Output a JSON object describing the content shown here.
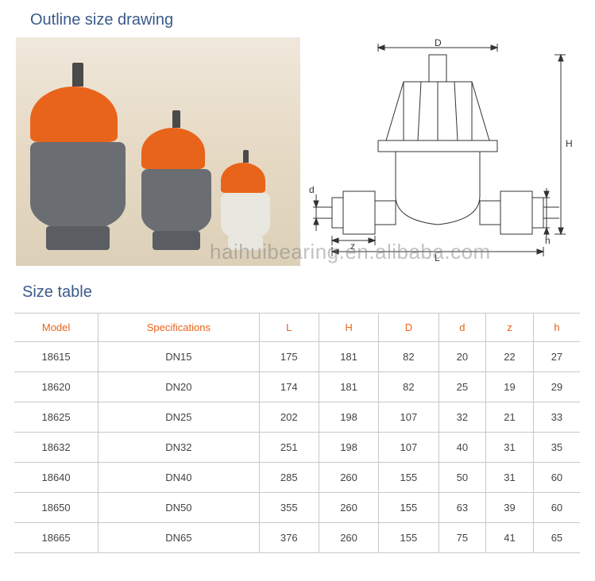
{
  "titles": {
    "outline": "Outline size drawing",
    "size_table": "Size table"
  },
  "watermark": "haihuibearing.en.alibaba.com",
  "diagram": {
    "labels": {
      "D": "D",
      "H": "H",
      "d": "d",
      "h": "h",
      "z": "z",
      "L": "L"
    },
    "stroke": "#333333",
    "stroke_width": 1
  },
  "photo": {
    "cap_color": "#e8641a",
    "body_color_dark": "#6a6e72",
    "body_color_light": "#e8e8e0",
    "stem_color": "#4a4a4a",
    "bg_gradient": [
      "#f0e8dc",
      "#dcd0b8"
    ]
  },
  "table": {
    "columns": [
      "Model",
      "Specifications",
      "L",
      "H",
      "D",
      "d",
      "z",
      "h"
    ],
    "header_color": "#e8641a",
    "border_color": "#c8c8c8",
    "cell_color": "#444444",
    "rows": [
      [
        "18615",
        "DN15",
        "175",
        "181",
        "82",
        "20",
        "22",
        "27"
      ],
      [
        "18620",
        "DN20",
        "174",
        "181",
        "82",
        "25",
        "19",
        "29"
      ],
      [
        "18625",
        "DN25",
        "202",
        "198",
        "107",
        "32",
        "21",
        "33"
      ],
      [
        "18632",
        "DN32",
        "251",
        "198",
        "107",
        "40",
        "31",
        "35"
      ],
      [
        "18640",
        "DN40",
        "285",
        "260",
        "155",
        "50",
        "31",
        "60"
      ],
      [
        "18650",
        "DN50",
        "355",
        "260",
        "155",
        "63",
        "39",
        "60"
      ],
      [
        "18665",
        "DN65",
        "376",
        "260",
        "155",
        "75",
        "41",
        "65"
      ]
    ]
  }
}
